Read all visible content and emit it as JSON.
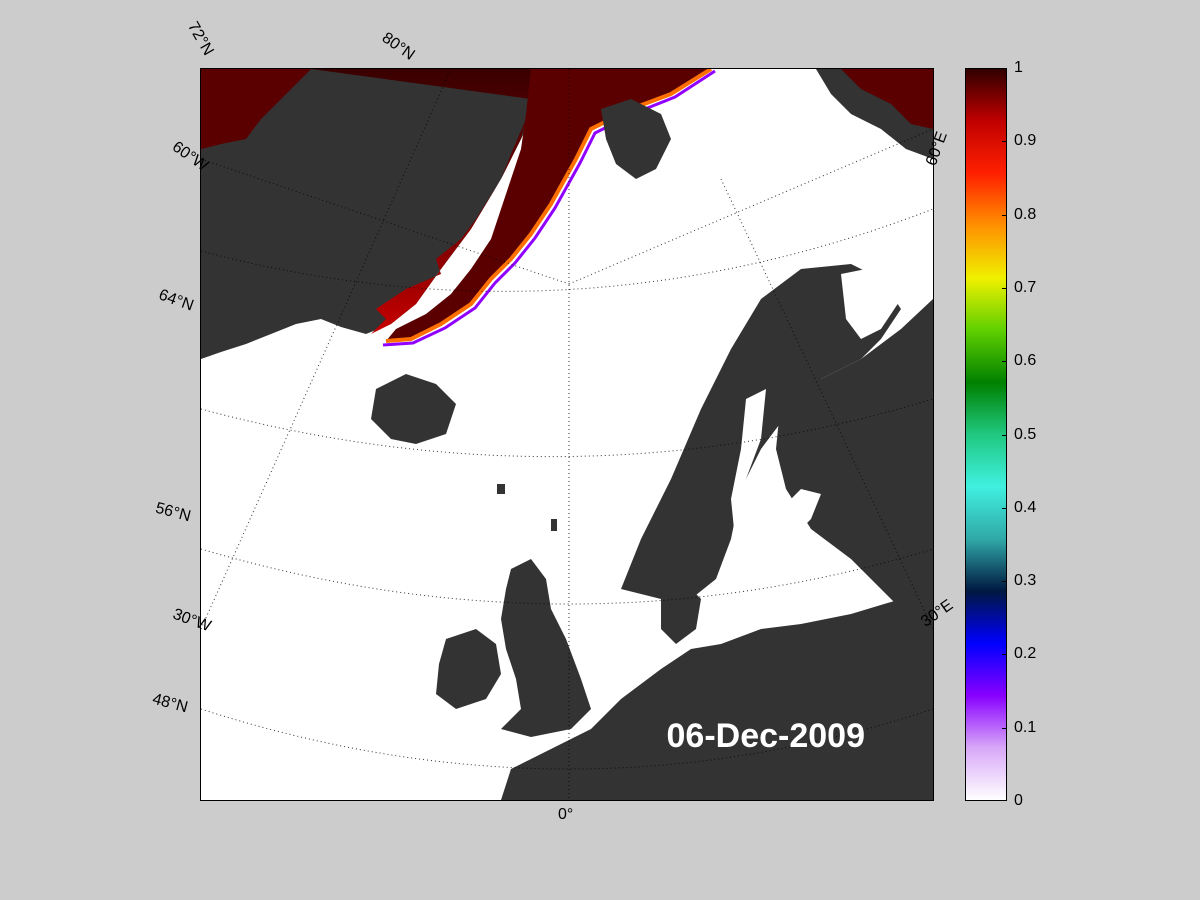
{
  "map": {
    "date": "06-Dec-2009",
    "colors": {
      "ocean_open": "#ffffff",
      "land": "#333333",
      "land_inland_water": "#777777",
      "background": "#cccccc"
    },
    "graticule_labels": {
      "lat_72": "72°N",
      "lat_80": "80°N",
      "lon_60w": "60°W",
      "lat_64": "64°N",
      "lat_56": "56°N",
      "lon_30w": "30°W",
      "lat_48": "48°N",
      "lon_0": "0°",
      "lon_30e": "30°E",
      "lon_60e": "60°E"
    }
  },
  "colorbar": {
    "ticks": [
      "0",
      "0.1",
      "0.2",
      "0.3",
      "0.4",
      "0.5",
      "0.6",
      "0.7",
      "0.8",
      "0.9",
      "1"
    ],
    "min": 0,
    "max": 1,
    "stops": [
      "#ffffff",
      "#d8a8f8",
      "#8800ff",
      "#0000ff",
      "#001840",
      "#30a8a8",
      "#40f0e0",
      "#20c880",
      "#008000",
      "#60d000",
      "#f0f000",
      "#ff9000",
      "#ff2000",
      "#c00000",
      "#300000"
    ]
  }
}
